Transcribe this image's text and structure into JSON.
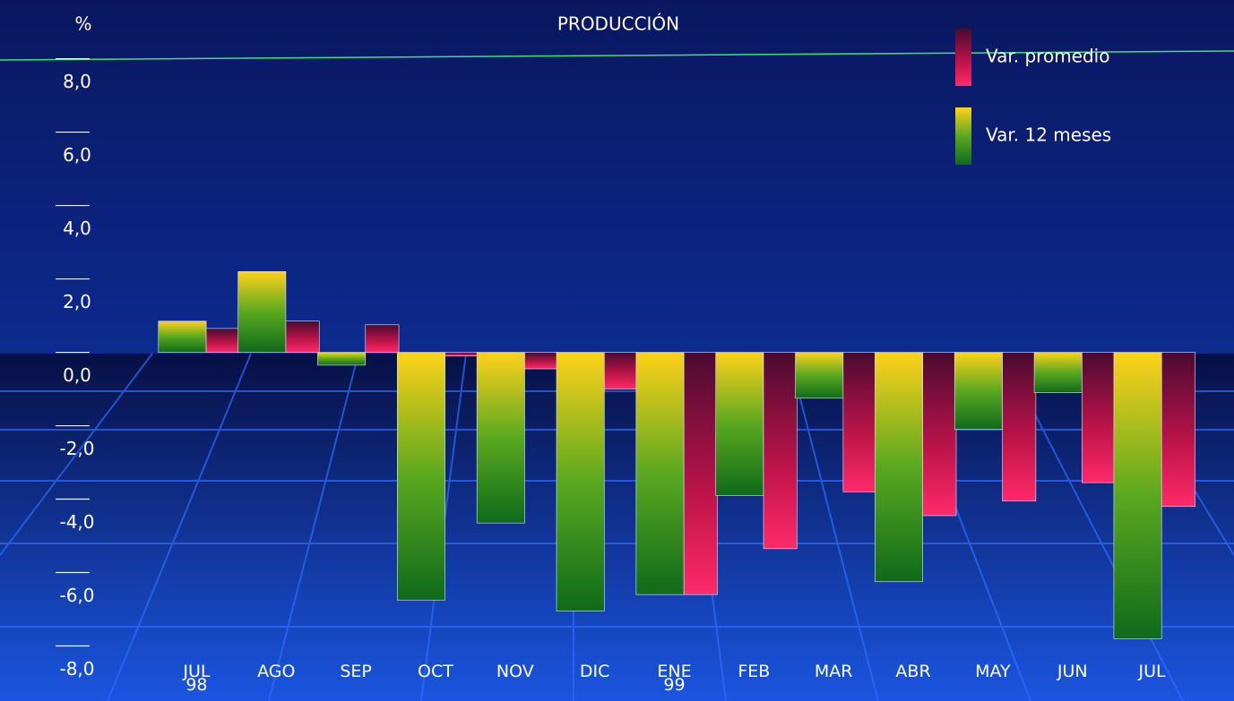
{
  "chart_data": {
    "type": "bar",
    "title": "PRODUCCIÓN",
    "y_unit": "%",
    "categories": [
      "JUL\n98",
      "AGO",
      "SEP",
      "OCT",
      "NOV",
      "DIC",
      "ENE\n99",
      "FEB",
      "MAR",
      "ABR",
      "MAY",
      "JUN",
      "JUL"
    ],
    "series": [
      {
        "name": "Var. 12 meses",
        "color": "#1f8f1f",
        "values": [
          0.85,
          2.2,
          -0.35,
          -6.75,
          -4.65,
          -7.05,
          -6.6,
          -3.9,
          -1.25,
          -6.25,
          -2.1,
          -1.1,
          -7.8
        ]
      },
      {
        "name": "Var. promedio",
        "color": "#ff2a6a",
        "values": [
          0.65,
          0.85,
          0.75,
          -0.1,
          -0.45,
          -1.0,
          -6.6,
          -5.35,
          -3.8,
          -4.45,
          -4.05,
          -3.55,
          -4.2
        ]
      }
    ],
    "ylim": [
      -9.5,
      9.6
    ],
    "yticks": [
      {
        "value": 8,
        "label": "8,0"
      },
      {
        "value": 6,
        "label": "6,0"
      },
      {
        "value": 4,
        "label": "4,0"
      },
      {
        "value": 2,
        "label": "2,0"
      },
      {
        "value": 0,
        "label": "0,0"
      },
      {
        "value": -2,
        "label": "-2,0"
      },
      {
        "value": -4,
        "label": "-4,0"
      },
      {
        "value": -6,
        "label": "-6,0"
      },
      {
        "value": -8,
        "label": "-8,0"
      }
    ],
    "legend": "top-right"
  }
}
